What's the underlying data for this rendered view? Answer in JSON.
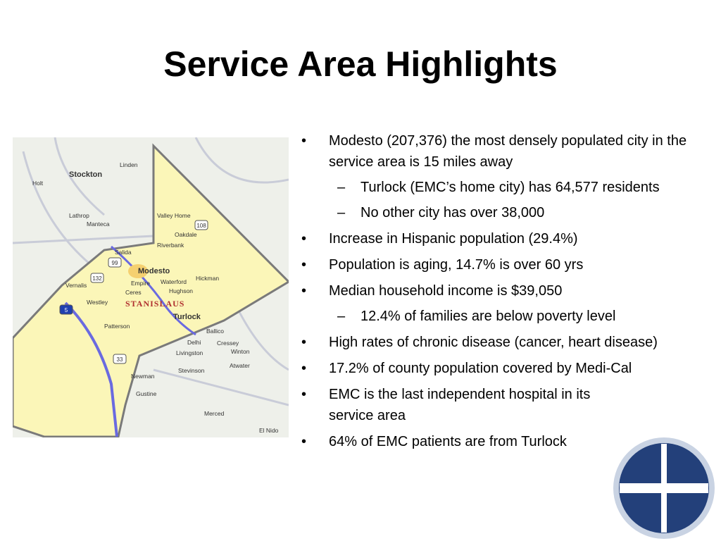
{
  "title": "Service Area Highlights",
  "bullets": [
    {
      "text": "Modesto (207,376) the most densely populated city in the service area is 15 miles away",
      "sub": [
        "Turlock (EMC’s home city) has 64,577 residents",
        "No other city has over 38,000"
      ]
    },
    {
      "text": "Increase in Hispanic population (29.4%)"
    },
    {
      "text": "Population is aging, 14.7% is over 60 yrs"
    },
    {
      "text": "Median household income is $39,050",
      "sub": [
        "12.4% of families are below poverty level"
      ]
    },
    {
      "text": "High rates of chronic disease (cancer, heart disease)"
    },
    {
      "text": "17.2% of county population covered by Medi-Cal"
    },
    {
      "text": "EMC is the last independent hospital in its service area"
    },
    {
      "text": "64% of EMC patients are from Turlock"
    }
  ],
  "map": {
    "county": "STANISLAUS",
    "places": [
      "Stockton",
      "Linden",
      "Holt",
      "Lathrop",
      "Manteca",
      "Valley Home",
      "Oakdale",
      "Riverbank",
      "Salida",
      "Modesto",
      "Empire",
      "Waterford",
      "Hickman",
      "Vernalis",
      "Ceres",
      "Hughson",
      "Westley",
      "Turlock",
      "Patterson",
      "Ballico",
      "Delhi",
      "Cressey",
      "Livingston",
      "Winton",
      "Atwater",
      "Stevinson",
      "Newman",
      "Gustine",
      "Merced",
      "El Nido"
    ],
    "routes": [
      "5",
      "99",
      "132",
      "108",
      "33"
    ]
  }
}
